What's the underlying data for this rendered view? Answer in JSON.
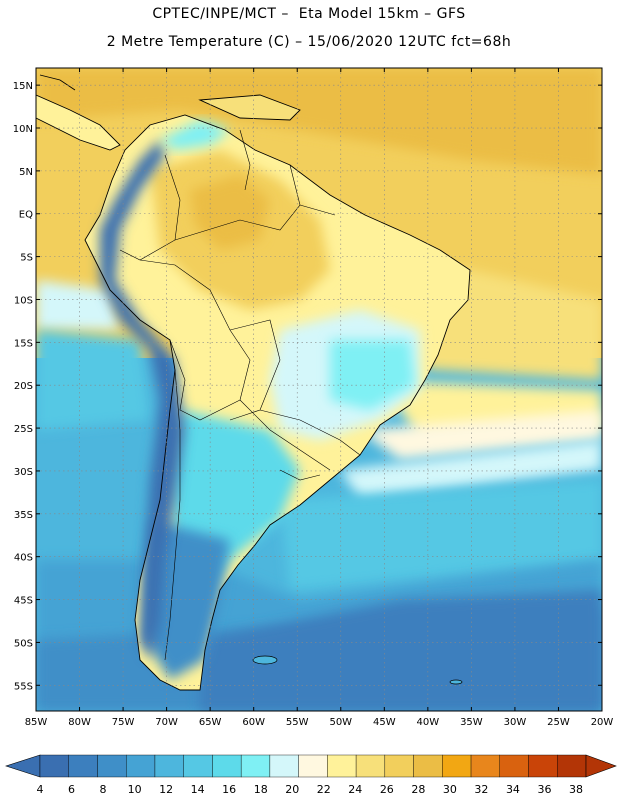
{
  "header": {
    "line1": "CPTEC/INPE/MCT –  Eta Model 15km – GFS",
    "line2": "2 Metre Temperature (C) – 15/06/2020 12UTC fct=68h"
  },
  "map": {
    "lon_range": [
      -85,
      -20
    ],
    "lat_range": [
      -58,
      17
    ],
    "lat_ticks": [
      "15N",
      "10N",
      "5N",
      "EQ",
      "5S",
      "10S",
      "15S",
      "20S",
      "25S",
      "30S",
      "35S",
      "40S",
      "45S",
      "50S",
      "55S"
    ],
    "lon_ticks": [
      "85W",
      "80W",
      "75W",
      "70W",
      "65W",
      "60W",
      "55W",
      "50W",
      "45W",
      "40W",
      "35W",
      "30W",
      "25W",
      "20W"
    ],
    "grid": true
  },
  "colorbar": {
    "labels": [
      "4",
      "6",
      "8",
      "10",
      "12",
      "14",
      "16",
      "18",
      "20",
      "22",
      "24",
      "26",
      "28",
      "30",
      "32",
      "34",
      "36",
      "38"
    ],
    "colors": [
      "#3a6fb1",
      "#3c7fbe",
      "#3f8fc8",
      "#45a3d4",
      "#4db6dd",
      "#55c8e4",
      "#5ddaea",
      "#7ff0f4",
      "#d4f7fa",
      "#fff8e0",
      "#fff29a",
      "#f7e07a",
      "#f2cf5c",
      "#ebbd45",
      "#f2a713",
      "#e8861c",
      "#d9620f",
      "#c94408",
      "#b33506"
    ]
  }
}
